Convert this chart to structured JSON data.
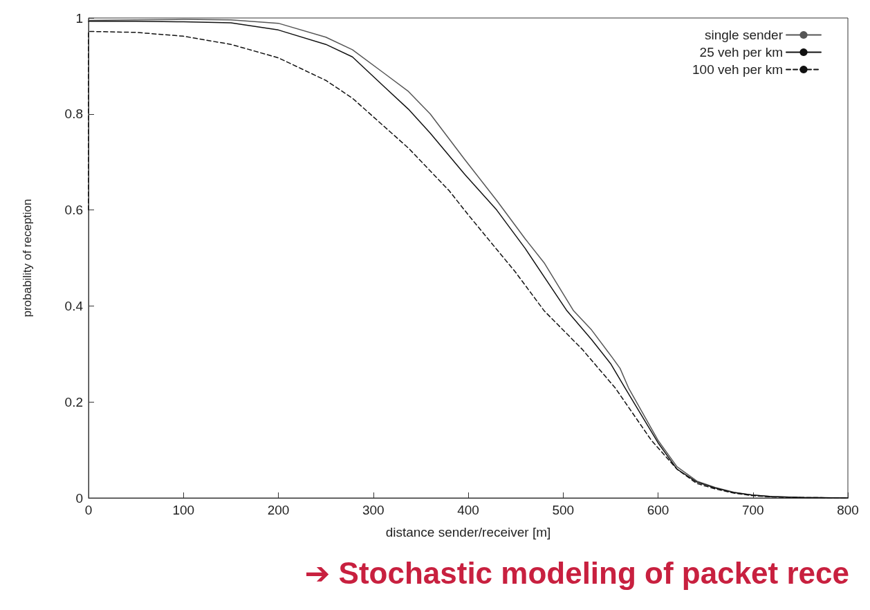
{
  "chart_data": {
    "type": "line",
    "xlabel": "distance sender/receiver [m]",
    "ylabel": "probability of reception",
    "xlim": [
      0,
      800
    ],
    "xticks": [
      0,
      100,
      200,
      300,
      400,
      500,
      600,
      700,
      800
    ],
    "ylim": [
      0,
      1
    ],
    "yticks": [
      0,
      0.2,
      0.4,
      0.6,
      0.8,
      1
    ],
    "grid": false,
    "legend": "top right",
    "marker": "none",
    "annotations": [
      "➔ Stochastic modeling of packet rece"
    ],
    "series": [
      {
        "name": "single sender",
        "color": "#555555",
        "line_style": "solid",
        "x": [
          0,
          50,
          100,
          150,
          200,
          250,
          278,
          312,
          337,
          360,
          396,
          430,
          460,
          480,
          511,
          530,
          552,
          560,
          569,
          600,
          620,
          641,
          660,
          680,
          699,
          720,
          750,
          800
        ],
        "values": [
          0.995,
          0.996,
          0.997,
          0.996,
          0.989,
          0.96,
          0.934,
          0.884,
          0.847,
          0.8,
          0.706,
          0.62,
          0.54,
          0.49,
          0.39,
          0.35,
          0.292,
          0.27,
          0.229,
          0.12,
          0.065,
          0.035,
          0.022,
          0.012,
          0.006,
          0.003,
          0.001,
          0
        ]
      },
      {
        "name": "25 veh per km",
        "color": "#111111",
        "line_style": "solid",
        "x": [
          0,
          50,
          100,
          150,
          200,
          250,
          278,
          312,
          337,
          360,
          396,
          430,
          460,
          504,
          530,
          550,
          565,
          600,
          620,
          641,
          660,
          680,
          699,
          720,
          750,
          800
        ],
        "values": [
          0.993,
          0.993,
          0.992,
          0.99,
          0.975,
          0.945,
          0.919,
          0.856,
          0.81,
          0.76,
          0.675,
          0.6,
          0.52,
          0.39,
          0.33,
          0.28,
          0.23,
          0.115,
          0.06,
          0.033,
          0.021,
          0.011,
          0.006,
          0.003,
          0.001,
          0
        ]
      },
      {
        "name": "100 veh per km",
        "color": "#111111",
        "line_style": "dashed",
        "x": [
          0,
          0,
          50,
          100,
          150,
          200,
          250,
          278,
          312,
          337,
          380,
          400,
          450,
          480,
          520,
          555,
          593,
          620,
          641,
          660,
          680,
          699,
          720,
          750,
          800
        ],
        "values": [
          0.6,
          0.972,
          0.97,
          0.962,
          0.945,
          0.917,
          0.87,
          0.833,
          0.773,
          0.729,
          0.64,
          0.59,
          0.47,
          0.39,
          0.31,
          0.229,
          0.12,
          0.06,
          0.03,
          0.019,
          0.01,
          0.005,
          0.002,
          0.001,
          0
        ]
      }
    ]
  }
}
